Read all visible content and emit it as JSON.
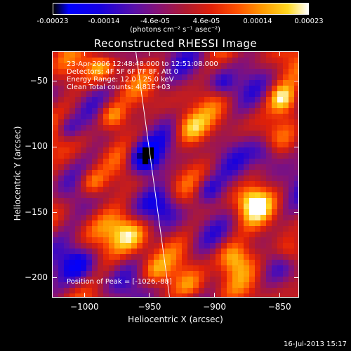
{
  "colorbar": {
    "tick_labels": [
      "-0.00023",
      "-0.00014",
      "-4.6e-05",
      "4.6e-05",
      "0.00014",
      "0.00023"
    ],
    "units": "(photons cm⁻² s⁻¹ asec⁻²)"
  },
  "chart_data": {
    "type": "heatmap",
    "title": "Reconstructed RHESSI Image",
    "xlabel": "Heliocentric X (arcsec)",
    "ylabel": "Heliocentric Y (arcsec)",
    "xlim": [
      -1025,
      -835
    ],
    "ylim": [
      -215,
      -27
    ],
    "x_ticks": [
      -1000,
      -950,
      -900,
      -850
    ],
    "y_ticks": [
      -50,
      -100,
      -150,
      -200
    ],
    "x_tick_labels": [
      "−1000",
      "−950",
      "−900",
      "−850"
    ],
    "y_tick_labels": [
      "−50",
      "−100",
      "−150",
      "−200"
    ],
    "colorbar_range": [
      -0.00023,
      0.00023
    ],
    "limb_line": {
      "x": [
        -961,
        -935
      ],
      "y": [
        -27,
        -215
      ]
    },
    "peak_position": [
      -1026,
      -88
    ]
  },
  "annotations": {
    "time_range": "23-Apr-2006 12:48:48.000 to 12:51:08.000",
    "detectors": "Detectors: 4F 5F 6F 7F 8F, Att 0",
    "energy": "Energy Range: 12.0 - 25.0 keV",
    "clean": "Clean     Total counts: 4.81E+03",
    "peak": "Position of Peak = [-1026,-88]"
  },
  "timestamp": "16-Jul-2013 15:17"
}
